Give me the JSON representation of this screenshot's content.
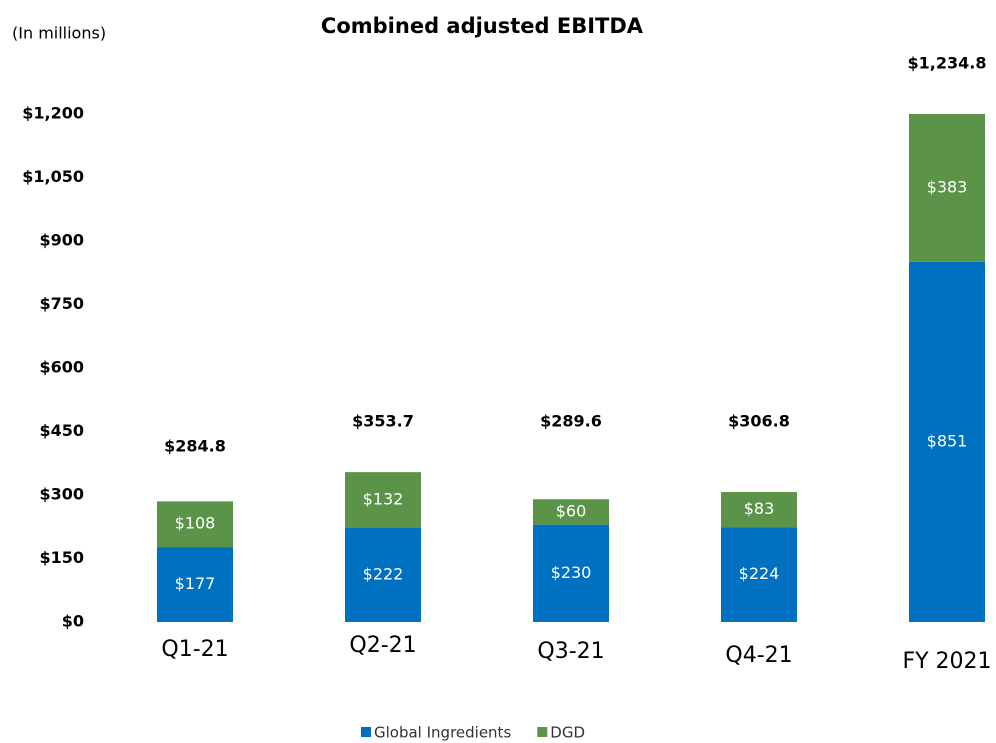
{
  "chart_data": {
    "type": "stacked_bar",
    "title": "Combined adjusted EBITDA",
    "subtitle": "(In millions)",
    "categories": [
      "Q1-21",
      "Q2-21",
      "Q3-21",
      "Q4-21",
      "FY 2021"
    ],
    "series": [
      {
        "name": "Global Ingredients",
        "color": "#0070c0",
        "values": [
          177,
          222,
          230,
          224,
          851
        ],
        "value_labels": [
          "$177",
          "$222",
          "$230",
          "$224",
          "$851"
        ]
      },
      {
        "name": "DGD",
        "color": "#5b9449",
        "values": [
          108,
          132,
          60,
          83,
          383
        ],
        "value_labels": [
          "$108",
          "$132",
          "$60",
          "$83",
          "$383"
        ]
      }
    ],
    "total_labels": [
      "$284.8",
      "$353.7",
      "$289.6",
      "$306.8",
      "$1,234.8"
    ],
    "ylim": [
      0,
      1200
    ],
    "yticks": [
      {
        "value": 0,
        "label": "$0"
      },
      {
        "value": 150,
        "label": "$150"
      },
      {
        "value": 300,
        "label": "$300"
      },
      {
        "value": 450,
        "label": "$450"
      },
      {
        "value": 600,
        "label": "$600"
      },
      {
        "value": 750,
        "label": "$750"
      },
      {
        "value": 900,
        "label": "$900"
      },
      {
        "value": 1050,
        "label": "$1,050"
      },
      {
        "value": 1200,
        "label": "$1,200"
      }
    ],
    "grid": false,
    "legend": "bottom"
  }
}
